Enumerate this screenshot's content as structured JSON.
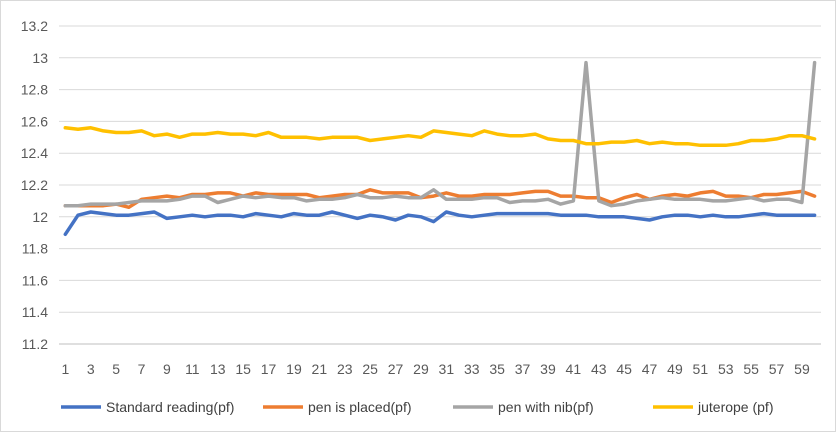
{
  "chart_data": {
    "type": "line",
    "title": "",
    "xlabel": "",
    "ylabel": "",
    "x": [
      1,
      2,
      3,
      4,
      5,
      6,
      7,
      8,
      9,
      10,
      11,
      12,
      13,
      14,
      15,
      16,
      17,
      18,
      19,
      20,
      21,
      22,
      23,
      24,
      25,
      26,
      27,
      28,
      29,
      30,
      31,
      32,
      33,
      34,
      35,
      36,
      37,
      38,
      39,
      40,
      41,
      42,
      43,
      44,
      45,
      46,
      47,
      48,
      49,
      50,
      51,
      52,
      53,
      54,
      55,
      56,
      57,
      58,
      59,
      60
    ],
    "x_tick_labels": [
      "1",
      "3",
      "5",
      "7",
      "9",
      "11",
      "13",
      "15",
      "17",
      "19",
      "21",
      "23",
      "25",
      "27",
      "29",
      "31",
      "33",
      "35",
      "37",
      "39",
      "41",
      "43",
      "45",
      "47",
      "49",
      "51",
      "53",
      "55",
      "57",
      "59"
    ],
    "ylim": [
      11.2,
      13.2
    ],
    "y_tick_labels": [
      "13.2",
      "13",
      "12.8",
      "12.6",
      "12.4",
      "12.2",
      "12",
      "11.8",
      "11.6",
      "11.4",
      "11.2"
    ],
    "grid": true,
    "legend_position": "bottom",
    "series": [
      {
        "name": "Standard reading(pf)",
        "color": "#4472c4",
        "values": [
          11.89,
          12.01,
          12.03,
          12.02,
          12.01,
          12.01,
          12.02,
          12.03,
          11.99,
          12.0,
          12.01,
          12.0,
          12.01,
          12.01,
          12.0,
          12.02,
          12.01,
          12.0,
          12.02,
          12.01,
          12.01,
          12.03,
          12.01,
          11.99,
          12.01,
          12.0,
          11.98,
          12.01,
          12.0,
          11.97,
          12.03,
          12.01,
          12.0,
          12.01,
          12.02,
          12.02,
          12.02,
          12.02,
          12.02,
          12.01,
          12.01,
          12.01,
          12.0,
          12.0,
          12.0,
          11.99,
          11.98,
          12.0,
          12.01,
          12.01,
          12.0,
          12.01,
          12.0,
          12.0,
          12.01,
          12.02,
          12.01,
          12.01,
          12.01,
          12.01
        ]
      },
      {
        "name": "pen is placed(pf)",
        "color": "#ed7d31",
        "values": [
          12.07,
          12.07,
          12.07,
          12.07,
          12.08,
          12.06,
          12.11,
          12.12,
          12.13,
          12.12,
          12.14,
          12.14,
          12.15,
          12.15,
          12.13,
          12.15,
          12.14,
          12.14,
          12.14,
          12.14,
          12.12,
          12.13,
          12.14,
          12.14,
          12.17,
          12.15,
          12.15,
          12.15,
          12.12,
          12.13,
          12.15,
          12.13,
          12.13,
          12.14,
          12.14,
          12.14,
          12.15,
          12.16,
          12.16,
          12.13,
          12.13,
          12.12,
          12.12,
          12.09,
          12.12,
          12.14,
          12.11,
          12.13,
          12.14,
          12.13,
          12.15,
          12.16,
          12.13,
          12.13,
          12.12,
          12.14,
          12.14,
          12.15,
          12.16,
          12.13
        ]
      },
      {
        "name": "pen with nib(pf)",
        "color": "#a5a5a5",
        "values": [
          12.07,
          12.07,
          12.08,
          12.08,
          12.08,
          12.09,
          12.1,
          12.1,
          12.1,
          12.11,
          12.13,
          12.13,
          12.09,
          12.11,
          12.13,
          12.12,
          12.13,
          12.12,
          12.12,
          12.1,
          12.11,
          12.11,
          12.12,
          12.14,
          12.12,
          12.12,
          12.13,
          12.12,
          12.12,
          12.17,
          12.11,
          12.11,
          12.11,
          12.12,
          12.12,
          12.09,
          12.1,
          12.1,
          12.11,
          12.08,
          12.1,
          12.97,
          12.1,
          12.07,
          12.08,
          12.1,
          12.11,
          12.12,
          12.11,
          12.11,
          12.11,
          12.1,
          12.1,
          12.11,
          12.12,
          12.1,
          12.11,
          12.11,
          12.09,
          12.97
        ]
      },
      {
        "name": "juterope (pf)",
        "color": "#ffc000",
        "values": [
          12.56,
          12.55,
          12.56,
          12.54,
          12.53,
          12.53,
          12.54,
          12.51,
          12.52,
          12.5,
          12.52,
          12.52,
          12.53,
          12.52,
          12.52,
          12.51,
          12.53,
          12.5,
          12.5,
          12.5,
          12.49,
          12.5,
          12.5,
          12.5,
          12.48,
          12.49,
          12.5,
          12.51,
          12.5,
          12.54,
          12.53,
          12.52,
          12.51,
          12.54,
          12.52,
          12.51,
          12.51,
          12.52,
          12.49,
          12.48,
          12.48,
          12.46,
          12.46,
          12.47,
          12.47,
          12.48,
          12.46,
          12.47,
          12.46,
          12.46,
          12.45,
          12.45,
          12.45,
          12.46,
          12.48,
          12.48,
          12.49,
          12.51,
          12.51,
          12.49
        ]
      }
    ]
  }
}
